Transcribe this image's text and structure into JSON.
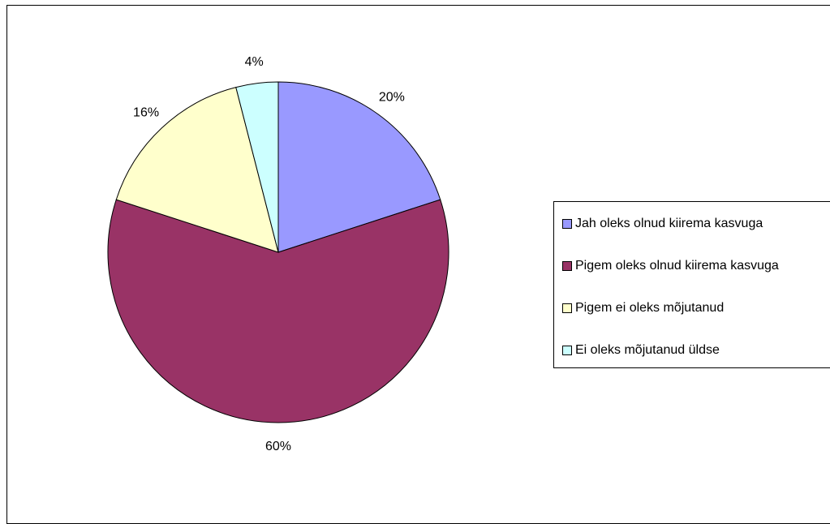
{
  "chart_data": {
    "type": "pie",
    "title": "",
    "start_angle_deg": 0,
    "direction": "clockwise",
    "slices": [
      {
        "name": "Jah oleks olnud kiirema kasvuga",
        "value": 20,
        "label": "20%",
        "color": "#9999FF"
      },
      {
        "name": "Pigem oleks olnud kiirema kasvuga",
        "value": 60,
        "label": "60%",
        "color": "#993366"
      },
      {
        "name": "Pigem ei oleks mõjutanud",
        "value": 16,
        "label": "16%",
        "color": "#FFFFCC"
      },
      {
        "name": "Ei oleks mõjutanud üldse",
        "value": 4,
        "label": "4%",
        "color": "#CCFFFF"
      }
    ],
    "legend_position": "right"
  }
}
